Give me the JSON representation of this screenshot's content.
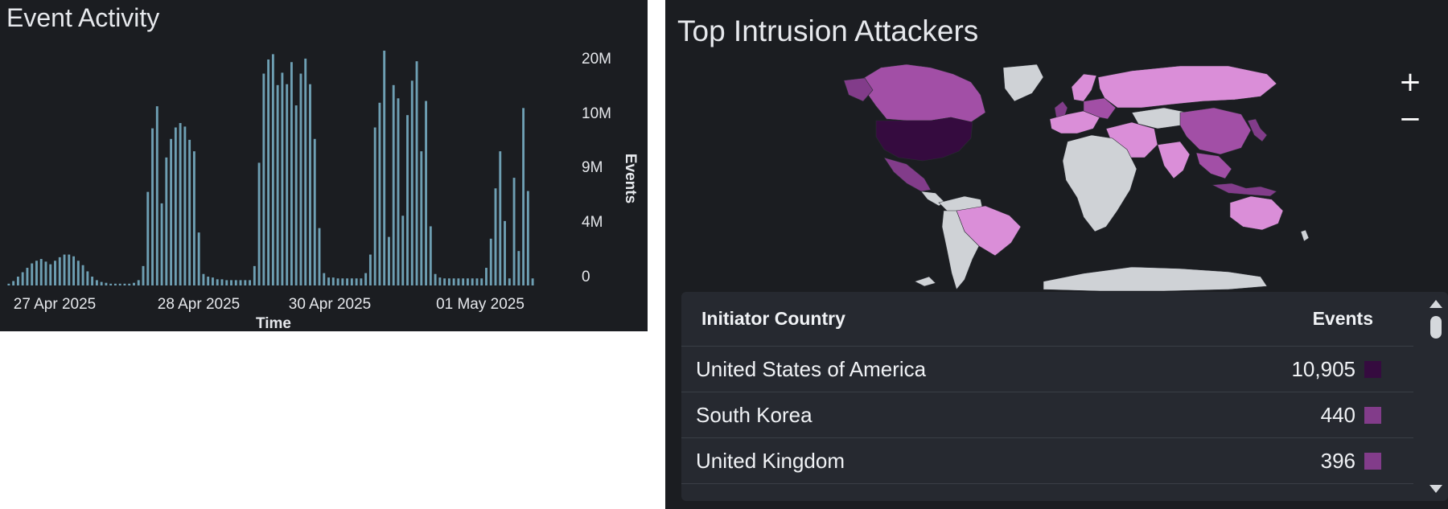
{
  "event_activity": {
    "title": "Event Activity",
    "colors": {
      "bar": "#6e9fb3",
      "axis_text": "#e6e8ec",
      "background": "#1b1d21"
    }
  },
  "chart_data": {
    "type": "bar",
    "title": "Event Activity",
    "xlabel": "Time",
    "ylabel": "Events",
    "y_ticks": [
      "0",
      "4M",
      "9M",
      "10M",
      "20M"
    ],
    "x_ticks": [
      "27 Apr 2025",
      "28 Apr 2025",
      "30 Apr 2025",
      "01 May 2025"
    ],
    "series": [
      {
        "values": [
          0.2,
          0.5,
          1.0,
          1.5,
          2.0,
          2.5,
          2.8,
          3.0,
          2.7,
          2.4,
          2.8,
          3.2,
          3.5,
          3.5,
          3.3,
          2.8,
          2.3,
          1.6,
          1.0,
          0.6,
          0.4,
          0.3,
          0.2,
          0.2,
          0.2,
          0.2,
          0.2,
          0.3,
          0.6,
          2.2,
          10.6,
          17.8,
          20.3,
          9.3,
          14.5,
          16.6,
          17.9,
          18.4,
          18.0,
          16.5,
          15.2,
          6.0,
          1.3,
          1.0,
          0.9,
          0.7,
          0.7,
          0.6,
          0.6,
          0.6,
          0.6,
          0.6,
          0.6,
          2.2,
          13.9,
          24.0,
          25.6,
          26.2,
          22.7,
          24.1,
          22.8,
          25.3,
          20.4,
          24.0,
          25.7,
          22.8,
          16.6,
          6.5,
          1.4,
          0.9,
          0.9,
          0.8,
          0.8,
          0.8,
          0.8,
          0.8,
          0.8,
          1.4,
          3.5,
          17.9,
          20.7,
          26.6,
          5.5,
          22.7,
          21.2,
          7.9,
          19.3,
          23.2,
          25.4,
          15.2,
          20.9,
          6.7,
          1.3,
          0.9,
          0.8,
          0.8,
          0.8,
          0.8,
          0.8,
          0.8,
          0.8,
          0.8,
          0.8,
          2.0,
          5.3,
          11.0,
          15.2,
          7.3,
          0.8,
          12.2,
          3.9,
          20.1,
          10.7,
          0.8
        ]
      }
    ]
  },
  "attackers": {
    "title": "Top Intrusion Attackers",
    "zoom_in_label": "+",
    "zoom_out_label": "−",
    "table": {
      "headers": {
        "country": "Initiator Country",
        "events": "Events"
      },
      "rows": [
        {
          "country": "United States of America",
          "events": "10,905",
          "color": "#350b3f"
        },
        {
          "country": "South Korea",
          "events": "440",
          "color": "#823c8a"
        },
        {
          "country": "United Kingdom",
          "events": "396",
          "color": "#823c8a"
        }
      ]
    },
    "map_colors": {
      "highest": "#350b3f",
      "high": "#823c8a",
      "medium": "#a24fa6",
      "low": "#da8ed8",
      "none": "#cfd2d6"
    }
  }
}
